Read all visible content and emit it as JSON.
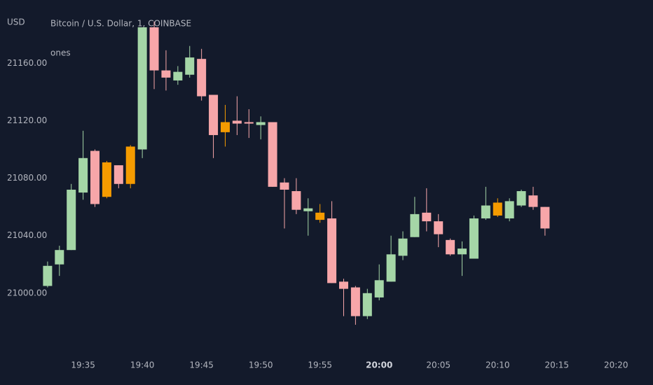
{
  "chart_data": {
    "type": "candlestick",
    "title": "Bitcoin / U.S. Dollar, 1, COINBASE",
    "subtitle": "ones",
    "y_axis_label": "USD",
    "x": [
      "19:32",
      "19:33",
      "19:34",
      "19:35",
      "19:36",
      "19:37",
      "19:38",
      "19:39",
      "19:40",
      "19:41",
      "19:42",
      "19:43",
      "19:44",
      "19:45",
      "19:46",
      "19:47",
      "19:48",
      "19:49",
      "19:50",
      "19:51",
      "19:52",
      "19:53",
      "19:54",
      "19:55",
      "19:56",
      "19:57",
      "19:58",
      "19:59",
      "20:00",
      "20:01",
      "20:02",
      "20:03",
      "20:04",
      "20:05",
      "20:06",
      "20:07",
      "20:08",
      "20:09",
      "20:10",
      "20:11",
      "20:12",
      "20:13",
      "20:14"
    ],
    "open": [
      21005,
      21020,
      21030,
      21070,
      21099,
      21067,
      21089,
      21076,
      21100,
      21185,
      21155,
      21148,
      21152,
      21163,
      21138,
      21112,
      21120,
      21119,
      21117,
      21119,
      21077,
      21071,
      21057,
      21056,
      21052,
      21008,
      21004,
      20984,
      20997,
      21008,
      21026,
      21039,
      21056,
      21050,
      21037,
      21027,
      21024,
      21052,
      21054,
      21052,
      21061,
      21068,
      21060
    ],
    "high": [
      21022,
      21033,
      21076,
      21113,
      21100,
      21092,
      21089,
      21103,
      21185,
      21189,
      21169,
      21158,
      21172,
      21170,
      21138,
      21131,
      21137,
      21128,
      21123,
      21119,
      21080,
      21080,
      21066,
      21062,
      21064,
      21010,
      21005,
      21003,
      21020,
      21040,
      21043,
      21067,
      21073,
      21055,
      21038,
      21036,
      21054,
      21074,
      21066,
      21066,
      21072,
      21074,
      21060
    ],
    "low": [
      21004,
      21012,
      21030,
      21065,
      21060,
      21066,
      21073,
      21073,
      21094,
      21142,
      21141,
      21145,
      21150,
      21134,
      21094,
      21102,
      21110,
      21108,
      21107,
      21074,
      21045,
      21055,
      21040,
      21049,
      21007,
      20984,
      20978,
      20982,
      20995,
      21008,
      21023,
      21039,
      21043,
      21032,
      21026,
      21012,
      21024,
      21051,
      21053,
      21050,
      21060,
      21058,
      21040
    ],
    "close": [
      21019,
      21030,
      21072,
      21094,
      21062,
      21091,
      21076,
      21102,
      21185,
      21155,
      21150,
      21154,
      21164,
      21137,
      21110,
      21119,
      21118,
      21118,
      21119,
      21074,
      21072,
      21058,
      21059,
      21051,
      21007,
      21003,
      20984,
      21000,
      21009,
      21027,
      21038,
      21055,
      21050,
      21041,
      21027,
      21031,
      21052,
      21061,
      21063,
      21064,
      21071,
      21060,
      21045
    ],
    "colors": [
      "#a5d6a7",
      "#a5d6a7",
      "#a5d6a7",
      "#a5d6a7",
      "#f7a6a9",
      "#f59b00",
      "#f7a6a9",
      "#f59b00",
      "#a5d6a7",
      "#f7a6a9",
      "#f7a6a9",
      "#a5d6a7",
      "#a5d6a7",
      "#f7a6a9",
      "#f7a6a9",
      "#f59b00",
      "#f7a6a9",
      "#f7a6a9",
      "#a5d6a7",
      "#f7a6a9",
      "#f7a6a9",
      "#f7a6a9",
      "#a5d6a7",
      "#f59b00",
      "#f7a6a9",
      "#f7a6a9",
      "#f7a6a9",
      "#a5d6a7",
      "#a5d6a7",
      "#a5d6a7",
      "#a5d6a7",
      "#a5d6a7",
      "#f7a6a9",
      "#f7a6a9",
      "#f7a6a9",
      "#a5d6a7",
      "#a5d6a7",
      "#a5d6a7",
      "#f59b00",
      "#a5d6a7",
      "#a5d6a7",
      "#f7a6a9",
      "#f7a6a9"
    ],
    "xlim": [
      "19:31",
      "20:23"
    ],
    "xticks": [
      "19:35",
      "19:40",
      "19:45",
      "19:50",
      "19:55",
      "20:00",
      "20:05",
      "20:10",
      "20:15",
      "20:20"
    ],
    "ylim": [
      20958,
      21204
    ],
    "yticks": [
      {
        "value": 21000,
        "label": "21000.00"
      },
      {
        "value": 21040,
        "label": "21040.00"
      },
      {
        "value": 21080,
        "label": "21080.00"
      },
      {
        "value": 21120,
        "label": "21120.00"
      },
      {
        "value": 21160,
        "label": "21160.00"
      }
    ]
  }
}
